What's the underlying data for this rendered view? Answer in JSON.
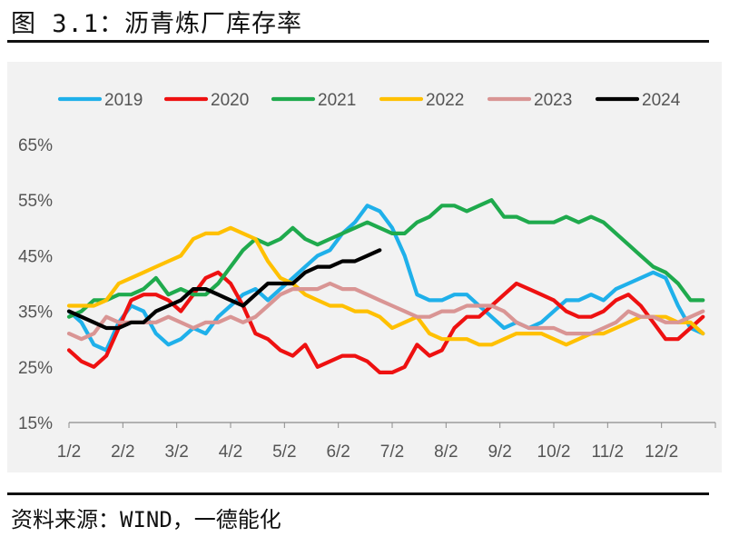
{
  "figure": {
    "title": "图 3.1：沥青炼厂库存率",
    "source": "资料来源：WIND，一德能化"
  },
  "chart_data": {
    "type": "line",
    "title": "",
    "xlabel": "",
    "ylabel": "",
    "x_ticks": [
      "1/2",
      "2/2",
      "3/2",
      "4/2",
      "5/2",
      "6/2",
      "7/2",
      "8/2",
      "9/2",
      "10/2",
      "11/2",
      "12/2"
    ],
    "y_ticks": [
      "15%",
      "25%",
      "35%",
      "45%",
      "55%",
      "65%"
    ],
    "ylim": [
      15,
      65
    ],
    "xlim": [
      0,
      52
    ],
    "grid": false,
    "legend_position": "top",
    "x_unit": "week of year",
    "y_unit": "%",
    "series": [
      {
        "name": "2019",
        "color": "#1fb0ea",
        "x": [
          0,
          1,
          2,
          3,
          4,
          5,
          6,
          7,
          8,
          9,
          10,
          11,
          12,
          13,
          14,
          15,
          16,
          17,
          18,
          19,
          20,
          21,
          22,
          23,
          24,
          25,
          26,
          27,
          28,
          29,
          30,
          31,
          32,
          33,
          34,
          35,
          36,
          37,
          38,
          39,
          40,
          41,
          42,
          43,
          44,
          45,
          46,
          47,
          48,
          49,
          50,
          51
        ],
        "values": [
          35,
          33,
          29,
          28,
          33,
          36,
          35,
          31,
          29,
          30,
          32,
          31,
          34,
          36,
          38,
          39,
          37,
          39,
          41,
          43,
          45,
          46,
          49,
          51,
          54,
          53,
          50,
          45,
          38,
          37,
          37,
          38,
          38,
          36,
          34,
          32,
          33,
          32,
          33,
          35,
          37,
          37,
          38,
          37,
          39,
          40,
          41,
          42,
          41,
          36,
          32,
          31
        ]
      },
      {
        "name": "2020",
        "color": "#ee1111",
        "x": [
          0,
          1,
          2,
          3,
          4,
          5,
          6,
          7,
          8,
          9,
          10,
          11,
          12,
          13,
          14,
          15,
          16,
          17,
          18,
          19,
          20,
          21,
          22,
          23,
          24,
          25,
          26,
          27,
          28,
          29,
          30,
          31,
          32,
          33,
          34,
          35,
          36,
          37,
          38,
          39,
          40,
          41,
          42,
          43,
          44,
          45,
          46,
          47,
          48,
          49,
          50,
          51
        ],
        "values": [
          28,
          26,
          25,
          27,
          32,
          37,
          38,
          38,
          37,
          35,
          38,
          41,
          42,
          40,
          36,
          31,
          30,
          28,
          27,
          29,
          25,
          26,
          27,
          27,
          26,
          24,
          24,
          25,
          29,
          27,
          28,
          32,
          34,
          34,
          36,
          38,
          40,
          39,
          38,
          37,
          35,
          34,
          34,
          35,
          37,
          38,
          36,
          33,
          30,
          30,
          32,
          34
        ]
      },
      {
        "name": "2021",
        "color": "#1faa4d",
        "x": [
          0,
          1,
          2,
          3,
          4,
          5,
          6,
          7,
          8,
          9,
          10,
          11,
          12,
          13,
          14,
          15,
          16,
          17,
          18,
          19,
          20,
          21,
          22,
          23,
          24,
          25,
          26,
          27,
          28,
          29,
          30,
          31,
          32,
          33,
          34,
          35,
          36,
          37,
          38,
          39,
          40,
          41,
          42,
          43,
          44,
          45,
          46,
          47,
          48,
          49,
          50,
          51
        ],
        "values": [
          34,
          35,
          37,
          37,
          38,
          38,
          39,
          41,
          38,
          39,
          38,
          38,
          40,
          43,
          46,
          48,
          47,
          48,
          50,
          48,
          47,
          48,
          49,
          50,
          51,
          50,
          49,
          49,
          51,
          52,
          54,
          54,
          53,
          54,
          55,
          52,
          52,
          51,
          51,
          51,
          52,
          51,
          52,
          51,
          49,
          47,
          45,
          43,
          42,
          40,
          37,
          37
        ]
      },
      {
        "name": "2022",
        "color": "#ffc000",
        "x": [
          0,
          1,
          2,
          3,
          4,
          5,
          6,
          7,
          8,
          9,
          10,
          11,
          12,
          13,
          14,
          15,
          16,
          17,
          18,
          19,
          20,
          21,
          22,
          23,
          24,
          25,
          26,
          27,
          28,
          29,
          30,
          31,
          32,
          33,
          34,
          35,
          36,
          37,
          38,
          39,
          40,
          41,
          42,
          43,
          44,
          45,
          46,
          47,
          48,
          49,
          50,
          51
        ],
        "values": [
          36,
          36,
          36,
          37,
          40,
          41,
          42,
          43,
          44,
          45,
          48,
          49,
          49,
          50,
          49,
          48,
          44,
          41,
          40,
          38,
          37,
          36,
          36,
          35,
          35,
          34,
          32,
          33,
          34,
          31,
          30,
          30,
          30,
          29,
          29,
          30,
          31,
          31,
          31,
          30,
          29,
          30,
          31,
          31,
          32,
          33,
          34,
          34,
          34,
          33,
          33,
          31
        ]
      },
      {
        "name": "2023",
        "color": "#d99594",
        "x": [
          0,
          1,
          2,
          3,
          4,
          5,
          6,
          7,
          8,
          9,
          10,
          11,
          12,
          13,
          14,
          15,
          16,
          17,
          18,
          19,
          20,
          21,
          22,
          23,
          24,
          25,
          26,
          27,
          28,
          29,
          30,
          31,
          32,
          33,
          34,
          35,
          36,
          37,
          38,
          39,
          40,
          41,
          42,
          43,
          44,
          45,
          46,
          47,
          48,
          49,
          50,
          51
        ],
        "values": [
          31,
          30,
          31,
          34,
          33,
          33,
          33,
          33,
          34,
          33,
          32,
          33,
          33,
          34,
          33,
          34,
          36,
          38,
          39,
          39,
          39,
          40,
          39,
          39,
          38,
          37,
          36,
          35,
          34,
          34,
          35,
          35,
          36,
          36,
          36,
          35,
          33,
          32,
          32,
          32,
          31,
          31,
          31,
          32,
          33,
          35,
          34,
          34,
          33,
          33,
          34,
          35
        ]
      },
      {
        "name": "2024",
        "color": "#000000",
        "x": [
          0,
          1,
          2,
          3,
          4,
          5,
          6,
          7,
          8,
          9,
          10,
          11,
          12,
          13,
          14,
          15,
          16,
          17,
          18,
          19,
          20,
          21,
          22,
          23,
          24,
          25
        ],
        "values": [
          35,
          34,
          33,
          32,
          32,
          33,
          33,
          35,
          36,
          37,
          39,
          39,
          38,
          37,
          36,
          38,
          40,
          40,
          40,
          42,
          43,
          43,
          44,
          44,
          45,
          46
        ]
      }
    ]
  }
}
